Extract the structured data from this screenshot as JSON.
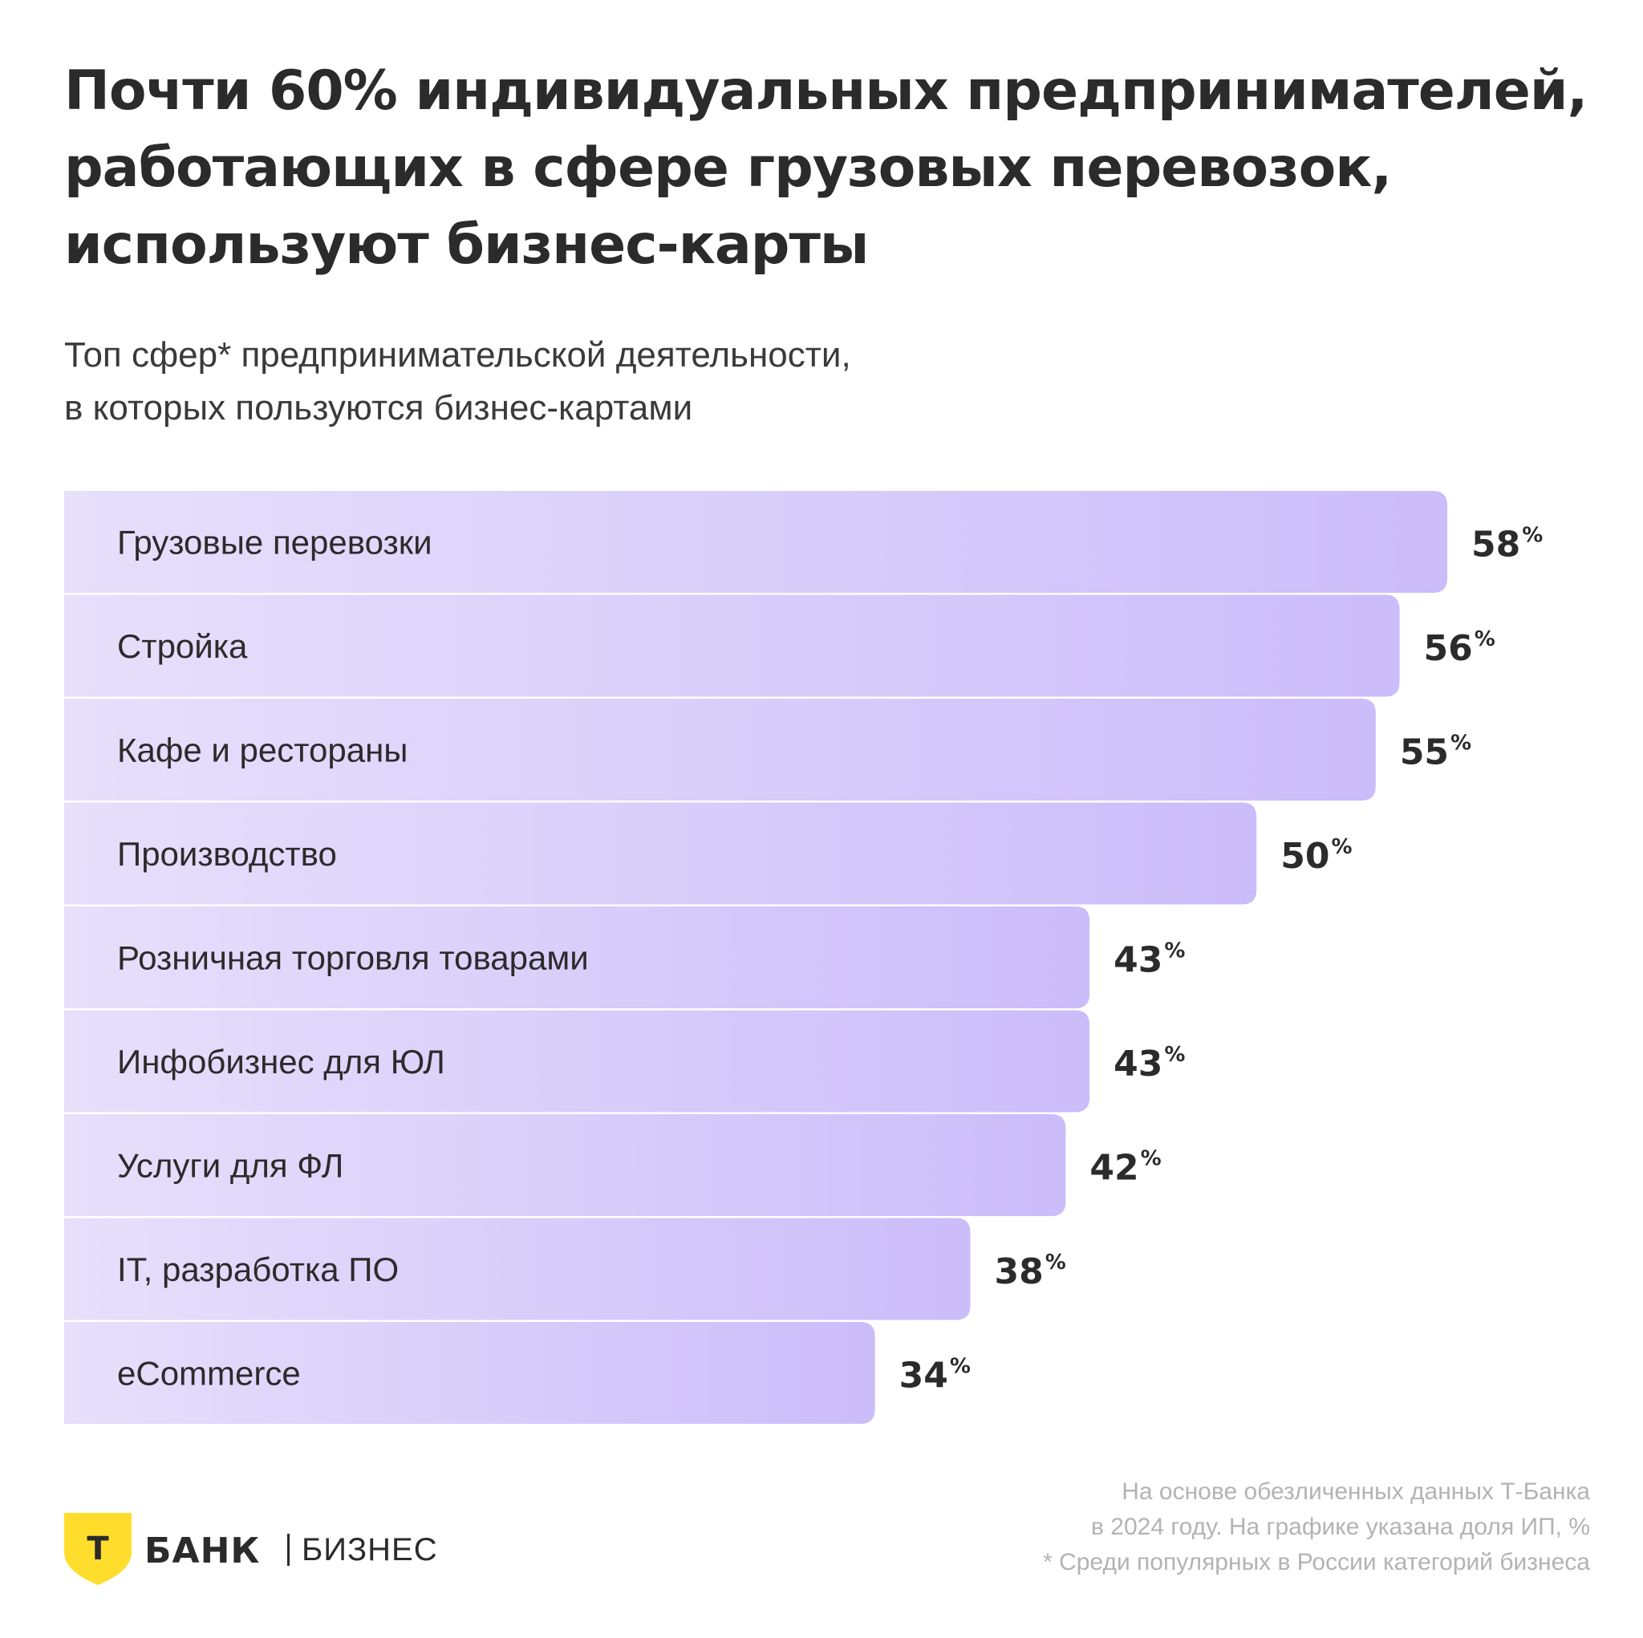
{
  "header": {
    "title_lines": [
      "Почти 60% индивидуальных предпринимателей,",
      "работающих в сфере грузовых перевозок,",
      "используют бизнес-карты"
    ],
    "subtitle_lines": [
      "Топ сфер* предпринимательской деятельности,",
      "в которых пользуются бизнес-картами"
    ]
  },
  "chart_data": {
    "type": "bar",
    "orientation": "horizontal",
    "categories": [
      "Грузовые перевозки",
      "Стройка",
      "Кафе и рестораны",
      "Производство",
      "Розничная торговля товарами",
      "Инфобизнес для ЮЛ",
      "Услуги для ФЛ",
      "IT, разработка ПО",
      "eCommerce"
    ],
    "values": [
      58,
      56,
      55,
      50,
      43,
      43,
      42,
      38,
      34
    ],
    "value_unit": "%",
    "xlim": [
      0,
      58
    ],
    "grid": false,
    "colors": {
      "bar_start": "#e6e0fb",
      "bar_end": "#cbbcfa"
    }
  },
  "footer": {
    "notes": [
      "На основе обезличенных данных Т-Банка",
      "в 2024 году. На графике указана доля ИП, %",
      "* Среди популярных в России категорий бизнеса"
    ],
    "logo": {
      "letter": "Т",
      "bank": "БАНК",
      "section": "БИЗНЕС",
      "shield_color": "#ffdd2d"
    }
  }
}
